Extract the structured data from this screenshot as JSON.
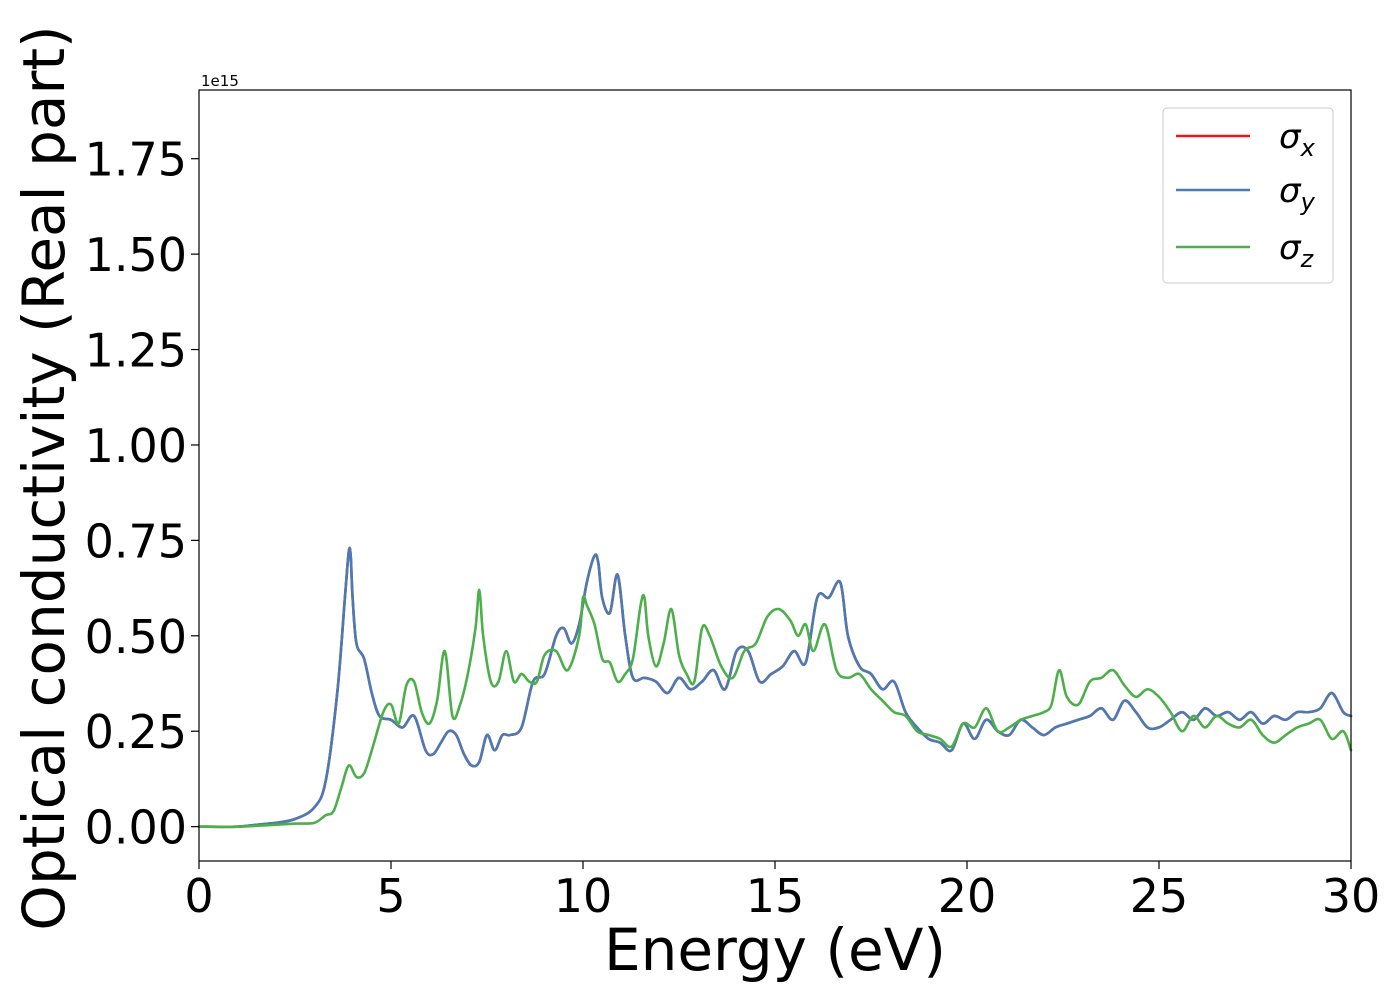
{
  "chart_data": {
    "type": "line",
    "xlabel": "Energy (eV)",
    "ylabel": "Optical conductivity (Real part)",
    "y_offset_label": "1e15",
    "xlim": [
      0,
      30
    ],
    "ylim": [
      -0.09,
      1.93
    ],
    "xticks": [
      0,
      5,
      10,
      15,
      20,
      25,
      30
    ],
    "xtick_labels": [
      "0",
      "5",
      "10",
      "15",
      "20",
      "25",
      "30"
    ],
    "yticks": [
      0.0,
      0.25,
      0.5,
      0.75,
      1.0,
      1.25,
      1.5,
      1.75
    ],
    "ytick_labels": [
      "0.00",
      "0.25",
      "0.50",
      "0.75",
      "1.00",
      "1.25",
      "1.50",
      "1.75"
    ],
    "grid": false,
    "legend_position": "top-right",
    "series": [
      {
        "name": "σx",
        "symbol": "σ",
        "subscript": "x",
        "color": "#e41a1c",
        "x": [
          0,
          1,
          1.5,
          2,
          2.5,
          3,
          3.3,
          3.6,
          3.8,
          3.9,
          3.95,
          4.0,
          4.1,
          4.3,
          4.5,
          4.7,
          5.0,
          5.3,
          5.6,
          5.9,
          6.1,
          6.3,
          6.5,
          6.7,
          6.9,
          7.1,
          7.3,
          7.5,
          7.7,
          7.9,
          8.1,
          8.4,
          8.7,
          9.0,
          9.3,
          9.5,
          9.7,
          9.9,
          10.1,
          10.3,
          10.4,
          10.5,
          10.7,
          10.9,
          11.1,
          11.3,
          11.6,
          11.9,
          12.2,
          12.5,
          12.8,
          13.1,
          13.4,
          13.7,
          14.0,
          14.3,
          14.6,
          14.9,
          15.2,
          15.5,
          15.8,
          16.1,
          16.4,
          16.7,
          16.9,
          17.2,
          17.5,
          17.8,
          18.1,
          18.4,
          18.7,
          19.0,
          19.3,
          19.6,
          19.9,
          20.2,
          20.5,
          20.8,
          21.1,
          21.4,
          21.7,
          22.0,
          22.3,
          22.6,
          22.9,
          23.2,
          23.5,
          23.8,
          24.1,
          24.4,
          24.7,
          25.0,
          25.3,
          25.6,
          25.9,
          26.2,
          26.5,
          26.8,
          27.1,
          27.4,
          27.7,
          28.0,
          28.3,
          28.6,
          28.9,
          29.2,
          29.5,
          29.8,
          30.0
        ],
        "y": [
          0,
          0,
          0.005,
          0.01,
          0.02,
          0.05,
          0.12,
          0.35,
          0.6,
          0.72,
          0.71,
          0.6,
          0.48,
          0.44,
          0.35,
          0.29,
          0.28,
          0.26,
          0.29,
          0.2,
          0.19,
          0.22,
          0.25,
          0.24,
          0.19,
          0.16,
          0.17,
          0.24,
          0.2,
          0.24,
          0.24,
          0.26,
          0.38,
          0.4,
          0.5,
          0.52,
          0.48,
          0.53,
          0.64,
          0.71,
          0.69,
          0.6,
          0.56,
          0.66,
          0.5,
          0.39,
          0.39,
          0.38,
          0.35,
          0.39,
          0.36,
          0.38,
          0.41,
          0.36,
          0.46,
          0.46,
          0.38,
          0.4,
          0.42,
          0.46,
          0.43,
          0.6,
          0.6,
          0.64,
          0.5,
          0.42,
          0.4,
          0.36,
          0.38,
          0.3,
          0.26,
          0.23,
          0.22,
          0.2,
          0.27,
          0.23,
          0.28,
          0.25,
          0.24,
          0.28,
          0.26,
          0.24,
          0.26,
          0.27,
          0.28,
          0.29,
          0.31,
          0.28,
          0.33,
          0.3,
          0.26,
          0.26,
          0.28,
          0.3,
          0.28,
          0.31,
          0.29,
          0.3,
          0.28,
          0.3,
          0.27,
          0.29,
          0.28,
          0.3,
          0.3,
          0.31,
          0.35,
          0.3,
          0.29
        ]
      },
      {
        "name": "σy",
        "symbol": "σ",
        "subscript": "y",
        "color": "#4a7bb5",
        "x": [
          0,
          1,
          1.5,
          2,
          2.5,
          3,
          3.3,
          3.6,
          3.8,
          3.9,
          3.95,
          4.0,
          4.1,
          4.3,
          4.5,
          4.7,
          5.0,
          5.3,
          5.6,
          5.9,
          6.1,
          6.3,
          6.5,
          6.7,
          6.9,
          7.1,
          7.3,
          7.5,
          7.7,
          7.9,
          8.1,
          8.4,
          8.7,
          9.0,
          9.3,
          9.5,
          9.7,
          9.9,
          10.1,
          10.3,
          10.4,
          10.5,
          10.7,
          10.9,
          11.1,
          11.3,
          11.6,
          11.9,
          12.2,
          12.5,
          12.8,
          13.1,
          13.4,
          13.7,
          14.0,
          14.3,
          14.6,
          14.9,
          15.2,
          15.5,
          15.8,
          16.1,
          16.4,
          16.7,
          16.9,
          17.2,
          17.5,
          17.8,
          18.1,
          18.4,
          18.7,
          19.0,
          19.3,
          19.6,
          19.9,
          20.2,
          20.5,
          20.8,
          21.1,
          21.4,
          21.7,
          22.0,
          22.3,
          22.6,
          22.9,
          23.2,
          23.5,
          23.8,
          24.1,
          24.4,
          24.7,
          25.0,
          25.3,
          25.6,
          25.9,
          26.2,
          26.5,
          26.8,
          27.1,
          27.4,
          27.7,
          28.0,
          28.3,
          28.6,
          28.9,
          29.2,
          29.5,
          29.8,
          30.0
        ],
        "y": [
          0,
          0,
          0.005,
          0.01,
          0.02,
          0.05,
          0.12,
          0.35,
          0.6,
          0.72,
          0.71,
          0.6,
          0.48,
          0.44,
          0.35,
          0.29,
          0.28,
          0.26,
          0.29,
          0.2,
          0.19,
          0.22,
          0.25,
          0.24,
          0.19,
          0.16,
          0.17,
          0.24,
          0.2,
          0.24,
          0.24,
          0.26,
          0.38,
          0.4,
          0.5,
          0.52,
          0.48,
          0.53,
          0.64,
          0.71,
          0.69,
          0.6,
          0.56,
          0.66,
          0.5,
          0.39,
          0.39,
          0.38,
          0.35,
          0.39,
          0.36,
          0.38,
          0.41,
          0.36,
          0.46,
          0.46,
          0.38,
          0.4,
          0.42,
          0.46,
          0.43,
          0.6,
          0.6,
          0.64,
          0.5,
          0.42,
          0.4,
          0.36,
          0.38,
          0.3,
          0.26,
          0.23,
          0.22,
          0.2,
          0.27,
          0.23,
          0.28,
          0.25,
          0.24,
          0.28,
          0.26,
          0.24,
          0.26,
          0.27,
          0.28,
          0.29,
          0.31,
          0.28,
          0.33,
          0.3,
          0.26,
          0.26,
          0.28,
          0.3,
          0.28,
          0.31,
          0.29,
          0.3,
          0.28,
          0.3,
          0.27,
          0.29,
          0.28,
          0.3,
          0.3,
          0.31,
          0.35,
          0.3,
          0.29
        ]
      },
      {
        "name": "σz",
        "symbol": "σ",
        "subscript": "z",
        "color": "#4daf4a",
        "x": [
          0,
          1,
          2,
          2.5,
          3,
          3.3,
          3.5,
          3.7,
          3.9,
          4.1,
          4.3,
          4.5,
          4.8,
          5.0,
          5.2,
          5.4,
          5.6,
          5.8,
          6.0,
          6.2,
          6.4,
          6.6,
          6.8,
          7.0,
          7.2,
          7.3,
          7.4,
          7.6,
          7.8,
          8.0,
          8.2,
          8.4,
          8.6,
          8.8,
          9.0,
          9.3,
          9.6,
          9.9,
          10.0,
          10.1,
          10.3,
          10.5,
          10.7,
          10.9,
          11.1,
          11.3,
          11.5,
          11.6,
          11.7,
          11.9,
          12.1,
          12.3,
          12.5,
          12.7,
          12.9,
          13.1,
          13.3,
          13.6,
          13.9,
          14.2,
          14.5,
          14.8,
          15.1,
          15.4,
          15.6,
          15.8,
          16.0,
          16.3,
          16.6,
          16.9,
          17.2,
          17.5,
          17.8,
          18.1,
          18.4,
          18.7,
          19.0,
          19.3,
          19.6,
          19.9,
          20.2,
          20.5,
          20.8,
          21.1,
          21.4,
          21.7,
          22.0,
          22.2,
          22.4,
          22.6,
          22.9,
          23.2,
          23.5,
          23.8,
          24.1,
          24.4,
          24.7,
          25.0,
          25.3,
          25.6,
          25.9,
          26.2,
          26.5,
          26.8,
          27.1,
          27.4,
          27.7,
          28.0,
          28.3,
          28.6,
          28.9,
          29.2,
          29.5,
          29.8,
          30.0
        ],
        "y": [
          0,
          0,
          0.005,
          0.008,
          0.01,
          0.03,
          0.04,
          0.1,
          0.16,
          0.13,
          0.14,
          0.2,
          0.3,
          0.32,
          0.27,
          0.37,
          0.38,
          0.3,
          0.27,
          0.33,
          0.46,
          0.29,
          0.32,
          0.4,
          0.52,
          0.62,
          0.5,
          0.38,
          0.38,
          0.46,
          0.38,
          0.4,
          0.38,
          0.38,
          0.45,
          0.46,
          0.41,
          0.5,
          0.6,
          0.58,
          0.53,
          0.44,
          0.43,
          0.38,
          0.4,
          0.44,
          0.58,
          0.6,
          0.5,
          0.42,
          0.48,
          0.57,
          0.45,
          0.4,
          0.38,
          0.52,
          0.5,
          0.42,
          0.39,
          0.46,
          0.48,
          0.55,
          0.57,
          0.54,
          0.5,
          0.53,
          0.46,
          0.53,
          0.41,
          0.39,
          0.4,
          0.36,
          0.33,
          0.3,
          0.29,
          0.25,
          0.24,
          0.23,
          0.21,
          0.27,
          0.26,
          0.31,
          0.25,
          0.26,
          0.28,
          0.29,
          0.3,
          0.32,
          0.41,
          0.34,
          0.32,
          0.38,
          0.39,
          0.41,
          0.37,
          0.34,
          0.36,
          0.34,
          0.3,
          0.25,
          0.29,
          0.26,
          0.29,
          0.27,
          0.26,
          0.28,
          0.24,
          0.22,
          0.24,
          0.26,
          0.27,
          0.28,
          0.23,
          0.25,
          0.2
        ]
      }
    ]
  }
}
